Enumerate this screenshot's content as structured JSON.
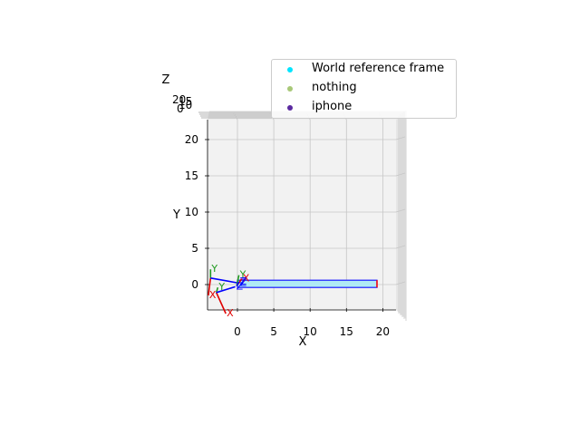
{
  "chart_data": {
    "type": "scatter",
    "projection": "3d",
    "view": "top-down (looking along -Z)",
    "xlabel": "X",
    "ylabel": "Y",
    "zlabel": "Z",
    "xlim": [
      -4,
      23
    ],
    "ylim": [
      -4,
      23
    ],
    "x_ticks": [
      "0",
      "5",
      "10",
      "15",
      "20"
    ],
    "y_ticks": [
      "0",
      "5",
      "10",
      "15",
      "20"
    ],
    "z_ticks": [
      "0",
      "10",
      "15",
      "20"
    ],
    "grid": true,
    "legend_position": "top-right",
    "series": [
      {
        "name": "World reference frame",
        "color": "#00e5ff"
      },
      {
        "name": "nothing",
        "color": "#a8c878"
      },
      {
        "name": "iphone",
        "color": "#5b2aa0"
      }
    ],
    "frames": [
      {
        "origin": [
          -3.7,
          0.9
        ],
        "x_end": [
          -4.0,
          -1.5
        ],
        "y_end": [
          -3.7,
          2.1
        ],
        "z_end": [
          0.2,
          0.2
        ]
      },
      {
        "origin": [
          -2.9,
          -1.1
        ],
        "x_end": [
          -1.6,
          -4.0
        ],
        "y_end": [
          -2.7,
          -0.4
        ],
        "z_end": [
          -0.3,
          -0.3
        ]
      },
      {
        "origin": [
          -0.1,
          -0.2
        ],
        "x_end": [
          0.6,
          0.8
        ],
        "y_end": [
          0.2,
          1.3
        ],
        "z_end": [
          0.2,
          0.4
        ]
      }
    ],
    "box": {
      "x_range": [
        0,
        19.2
      ],
      "y_range": [
        -0.4,
        0.6
      ],
      "fill": "#b0eaf4",
      "edge": "#1a1aff",
      "end_edge": "#ff0000"
    }
  },
  "axis_frame_labels": {
    "x": "X",
    "y": "Y",
    "z": "Z"
  }
}
